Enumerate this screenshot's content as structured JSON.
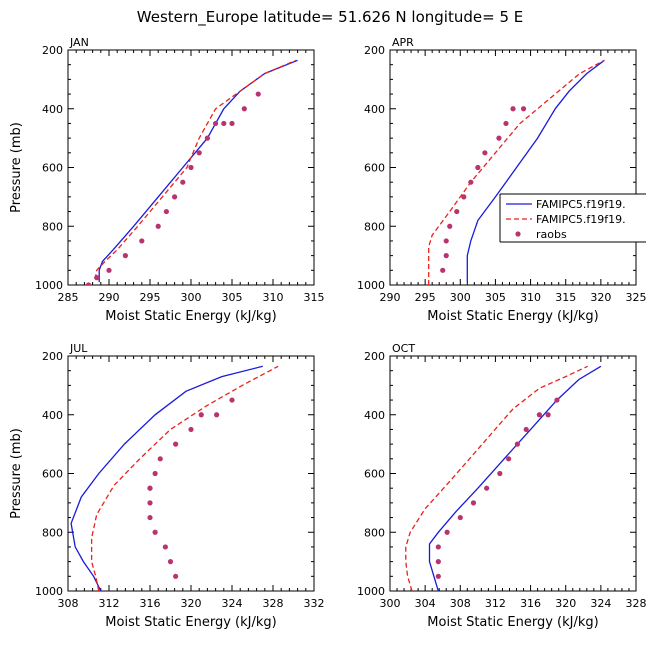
{
  "title": "Western_Europe  latitude= 51.626 N longitude= 5 E",
  "colors": {
    "model_a": "#1a1adb",
    "model_b": "#e8221e",
    "obs": "#b8346e"
  },
  "legend": [
    {
      "label": "FAMIPC5.f19f19.",
      "style": "solid"
    },
    {
      "label": "FAMIPC5.f19f19.",
      "style": "dashed"
    },
    {
      "label": "raobs",
      "style": "dots"
    }
  ],
  "chart_data": [
    {
      "type": "line",
      "panel": "JAN",
      "xlabel": "Moist Static Energy (kJ/kg)",
      "ylabel": "Pressure (mb)",
      "xlim": [
        285,
        315
      ],
      "ylim": [
        1000,
        200
      ],
      "xticks": [
        285,
        290,
        295,
        300,
        305,
        310,
        315
      ],
      "yticks": [
        200,
        400,
        600,
        800,
        1000
      ],
      "series": [
        {
          "name": "FAMIPC5.f19f19.",
          "style": "solid",
          "x": [
            288.8,
            288.8,
            289.2,
            290.5,
            293,
            296,
            299,
            302,
            304,
            306,
            309,
            313
          ],
          "y": [
            990,
            950,
            920,
            880,
            800,
            700,
            600,
            500,
            400,
            340,
            280,
            235
          ]
        },
        {
          "name": "FAMIPC5.f19f19.",
          "style": "dashed",
          "x": [
            288.3,
            288.5,
            289.5,
            291,
            293.5,
            296.5,
            299.5,
            301,
            303,
            306,
            309,
            312.8
          ],
          "y": [
            980,
            950,
            920,
            880,
            800,
            700,
            600,
            500,
            400,
            340,
            280,
            235
          ]
        },
        {
          "name": "raobs",
          "style": "dots",
          "x": [
            287.5,
            288.5,
            290,
            292,
            294,
            296,
            297,
            298,
            299,
            300,
            301,
            302,
            303,
            304,
            305,
            306.5,
            308.2
          ],
          "y": [
            1000,
            975,
            950,
            900,
            850,
            800,
            750,
            700,
            650,
            600,
            550,
            500,
            450,
            450,
            450,
            400,
            350
          ]
        }
      ]
    },
    {
      "type": "line",
      "panel": "APR",
      "xlabel": "Moist Static Energy (kJ/kg)",
      "ylabel": "",
      "xlim": [
        290,
        325
      ],
      "ylim": [
        1000,
        200
      ],
      "xticks": [
        290,
        295,
        300,
        305,
        310,
        315,
        320,
        325
      ],
      "yticks": [
        200,
        400,
        600,
        800,
        1000
      ],
      "series": [
        {
          "name": "FAMIPC5.f19f19.",
          "style": "solid",
          "x": [
            301,
            301,
            301.5,
            302.5,
            305,
            308,
            311,
            313.5,
            315.5,
            318,
            320.5
          ],
          "y": [
            990,
            900,
            850,
            780,
            700,
            600,
            500,
            400,
            340,
            280,
            235
          ]
        },
        {
          "name": "FAMIPC5.f19f19.",
          "style": "dashed",
          "x": [
            295.5,
            295.5,
            295.5,
            296,
            298.5,
            301.5,
            305,
            308.5,
            311,
            314,
            317,
            320.5
          ],
          "y": [
            1000,
            920,
            870,
            830,
            750,
            650,
            550,
            450,
            400,
            340,
            280,
            235
          ]
        },
        {
          "name": "raobs",
          "style": "dots",
          "x": [
            297.5,
            298,
            298,
            298.5,
            299.5,
            300.5,
            301.5,
            302.5,
            303.5,
            305.5,
            306.5,
            307.5,
            309
          ],
          "y": [
            950,
            900,
            850,
            800,
            750,
            700,
            650,
            600,
            550,
            500,
            450,
            400,
            400
          ]
        }
      ]
    },
    {
      "type": "line",
      "panel": "JUL",
      "xlabel": "Moist Static Energy (kJ/kg)",
      "ylabel": "Pressure (mb)",
      "xlim": [
        308,
        332
      ],
      "ylim": [
        1000,
        200
      ],
      "xticks": [
        308,
        312,
        316,
        320,
        324,
        328,
        332
      ],
      "yticks": [
        200,
        400,
        600,
        800,
        1000
      ],
      "series": [
        {
          "name": "FAMIPC5.f19f19.",
          "style": "solid",
          "x": [
            311.2,
            310.5,
            309.5,
            308.7,
            308.3,
            309.3,
            311,
            313.5,
            316.5,
            319.5,
            323,
            327
          ],
          "y": [
            1000,
            950,
            900,
            850,
            770,
            680,
            600,
            500,
            400,
            320,
            270,
            235
          ]
        },
        {
          "name": "FAMIPC5.f19f19.",
          "style": "dashed",
          "x": [
            311,
            310.7,
            310.3,
            310.3,
            310.8,
            312.5,
            315,
            318,
            321.5,
            325,
            328.5
          ],
          "y": [
            1000,
            950,
            900,
            820,
            740,
            640,
            550,
            450,
            370,
            300,
            235
          ]
        },
        {
          "name": "raobs",
          "style": "dots",
          "x": [
            318.5,
            318,
            317.5,
            316.5,
            316,
            316,
            316,
            316,
            316.5,
            317,
            318.5,
            320,
            321,
            322.5,
            324
          ],
          "y": [
            950,
            900,
            850,
            800,
            750,
            700,
            650,
            650,
            600,
            550,
            500,
            450,
            400,
            400,
            350
          ]
        }
      ]
    },
    {
      "type": "line",
      "panel": "OCT",
      "xlabel": "Moist Static Energy (kJ/kg)",
      "ylabel": "",
      "xlim": [
        300,
        328
      ],
      "ylim": [
        1000,
        200
      ],
      "xticks": [
        300,
        304,
        308,
        312,
        316,
        320,
        324,
        328
      ],
      "yticks": [
        200,
        400,
        600,
        800,
        1000
      ],
      "series": [
        {
          "name": "FAMIPC5.f19f19.",
          "style": "solid",
          "x": [
            305.5,
            305,
            304.5,
            304.5,
            305.5,
            307.5,
            310,
            313,
            316,
            319,
            321.5,
            324
          ],
          "y": [
            1000,
            950,
            900,
            840,
            800,
            730,
            650,
            550,
            450,
            350,
            280,
            235
          ]
        },
        {
          "name": "FAMIPC5.f19f19.",
          "style": "dashed",
          "x": [
            302.5,
            302,
            301.8,
            301.8,
            302.3,
            304,
            307,
            310.5,
            314,
            317,
            320,
            322.5
          ],
          "y": [
            1000,
            950,
            900,
            850,
            800,
            720,
            620,
            500,
            380,
            310,
            270,
            235
          ]
        },
        {
          "name": "raobs",
          "style": "dots",
          "x": [
            305.5,
            305.5,
            305.5,
            306.5,
            308,
            309.5,
            311,
            312.5,
            313.5,
            314.5,
            315.5,
            317,
            318,
            319
          ],
          "y": [
            950,
            900,
            850,
            800,
            750,
            700,
            650,
            600,
            550,
            500,
            450,
            400,
            400,
            350
          ]
        }
      ]
    }
  ]
}
